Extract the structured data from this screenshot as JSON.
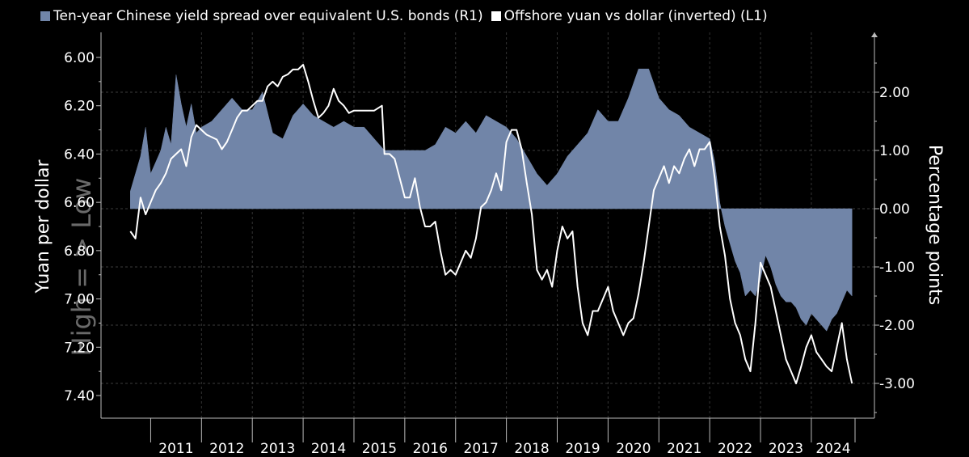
{
  "chart_data": {
    "type": "area",
    "legend_placement": "top-left",
    "grid": true,
    "colors": {
      "spread": "#7185a8",
      "yuan": "#ffffff",
      "background": "#000000",
      "grid": "#666666"
    },
    "left_axis": {
      "label": "Yuan per dollar",
      "inverted": true,
      "range": [
        5.97,
        7.47
      ],
      "ticks": [
        "6.00",
        "6.20",
        "6.40",
        "6.60",
        "6.80",
        "7.00",
        "7.20",
        "7.40"
      ]
    },
    "right_axis": {
      "label": "Percentage points",
      "range": [
        -3.6,
        3.0
      ],
      "ticks": [
        "2.00",
        "1.00",
        "0.00",
        "-1.00",
        "-2.00",
        "-3.00"
      ]
    },
    "watermark": "High = > Low",
    "x_years": [
      "2011",
      "2012",
      "2013",
      "2014",
      "2015",
      "2016",
      "2017",
      "2018",
      "2019",
      "2020",
      "2021",
      "2022",
      "2023",
      "2024"
    ],
    "series": [
      {
        "name": "Ten-year Chinese yield spread over equivalent U.S. bonds (R1)",
        "axis": "right",
        "x": [
          2010.6,
          2010.7,
          2010.8,
          2010.9,
          2011.0,
          2011.1,
          2011.2,
          2011.3,
          2011.4,
          2011.5,
          2011.6,
          2011.7,
          2011.8,
          2011.9,
          2012.0,
          2012.2,
          2012.4,
          2012.6,
          2012.8,
          2013.0,
          2013.2,
          2013.4,
          2013.6,
          2013.8,
          2014.0,
          2014.2,
          2014.4,
          2014.6,
          2014.8,
          2015.0,
          2015.2,
          2015.4,
          2015.6,
          2015.8,
          2016.0,
          2016.2,
          2016.4,
          2016.6,
          2016.8,
          2017.0,
          2017.2,
          2017.4,
          2017.6,
          2017.8,
          2018.0,
          2018.2,
          2018.4,
          2018.6,
          2018.8,
          2019.0,
          2019.2,
          2019.4,
          2019.6,
          2019.8,
          2020.0,
          2020.2,
          2020.4,
          2020.6,
          2020.8,
          2021.0,
          2021.2,
          2021.4,
          2021.6,
          2021.8,
          2022.0,
          2022.1,
          2022.2,
          2022.3,
          2022.4,
          2022.5,
          2022.6,
          2022.7,
          2022.8,
          2022.9,
          2023.0,
          2023.1,
          2023.2,
          2023.3,
          2023.4,
          2023.5,
          2023.6,
          2023.7,
          2023.8,
          2023.9,
          2024.0,
          2024.1,
          2024.2,
          2024.3,
          2024.4,
          2024.5,
          2024.6,
          2024.7,
          2024.8
        ],
        "values": [
          0.3,
          0.6,
          0.9,
          1.4,
          0.6,
          0.8,
          1.0,
          1.4,
          1.1,
          2.3,
          1.8,
          1.4,
          1.8,
          1.3,
          1.4,
          1.5,
          1.7,
          1.9,
          1.7,
          1.7,
          2.0,
          1.3,
          1.2,
          1.6,
          1.8,
          1.6,
          1.5,
          1.4,
          1.5,
          1.4,
          1.4,
          1.2,
          1.0,
          1.0,
          1.0,
          1.0,
          1.0,
          1.1,
          1.4,
          1.3,
          1.5,
          1.3,
          1.6,
          1.5,
          1.4,
          1.2,
          0.9,
          0.6,
          0.4,
          0.6,
          0.9,
          1.1,
          1.3,
          1.7,
          1.5,
          1.5,
          1.9,
          2.4,
          2.4,
          1.9,
          1.7,
          1.6,
          1.4,
          1.3,
          1.2,
          0.8,
          0.1,
          -0.3,
          -0.6,
          -0.9,
          -1.1,
          -1.5,
          -1.4,
          -1.5,
          -1.2,
          -0.8,
          -1.0,
          -1.3,
          -1.5,
          -1.6,
          -1.6,
          -1.7,
          -1.9,
          -2.0,
          -1.8,
          -1.9,
          -2.0,
          -2.1,
          -1.9,
          -1.8,
          -1.6,
          -1.4,
          -1.5
        ]
      },
      {
        "name": "Offshore yuan vs dollar (inverted) (L1)",
        "axis": "left",
        "x": [
          2010.6,
          2010.7,
          2010.8,
          2010.9,
          2011.0,
          2011.1,
          2011.2,
          2011.3,
          2011.4,
          2011.5,
          2011.6,
          2011.7,
          2011.8,
          2011.9,
          2012.0,
          2012.1,
          2012.2,
          2012.3,
          2012.4,
          2012.5,
          2012.6,
          2012.7,
          2012.8,
          2012.9,
          2013.0,
          2013.1,
          2013.2,
          2013.3,
          2013.4,
          2013.5,
          2013.6,
          2013.7,
          2013.8,
          2013.9,
          2014.0,
          2014.1,
          2014.2,
          2014.3,
          2014.4,
          2014.5,
          2014.6,
          2014.7,
          2014.8,
          2014.9,
          2015.0,
          2015.2,
          2015.4,
          2015.55,
          2015.6,
          2015.7,
          2015.8,
          2015.9,
          2016.0,
          2016.1,
          2016.2,
          2016.3,
          2016.4,
          2016.5,
          2016.6,
          2016.7,
          2016.8,
          2016.9,
          2017.0,
          2017.1,
          2017.2,
          2017.3,
          2017.4,
          2017.5,
          2017.6,
          2017.7,
          2017.8,
          2017.9,
          2018.0,
          2018.1,
          2018.2,
          2018.3,
          2018.4,
          2018.5,
          2018.6,
          2018.7,
          2018.8,
          2018.9,
          2019.0,
          2019.1,
          2019.2,
          2019.3,
          2019.4,
          2019.5,
          2019.6,
          2019.7,
          2019.8,
          2019.9,
          2020.0,
          2020.1,
          2020.2,
          2020.3,
          2020.4,
          2020.5,
          2020.6,
          2020.7,
          2020.8,
          2020.9,
          2021.0,
          2021.1,
          2021.2,
          2021.3,
          2021.4,
          2021.5,
          2021.6,
          2021.7,
          2021.8,
          2021.9,
          2022.0,
          2022.1,
          2022.2,
          2022.3,
          2022.4,
          2022.5,
          2022.6,
          2022.7,
          2022.8,
          2022.9,
          2023.0,
          2023.1,
          2023.2,
          2023.3,
          2023.4,
          2023.5,
          2023.6,
          2023.7,
          2023.8,
          2023.9,
          2024.0,
          2024.1,
          2024.2,
          2024.3,
          2024.4,
          2024.5,
          2024.6,
          2024.7,
          2024.8
        ],
        "values": [
          6.72,
          6.75,
          6.58,
          6.65,
          6.6,
          6.55,
          6.52,
          6.48,
          6.42,
          6.4,
          6.38,
          6.45,
          6.33,
          6.28,
          6.3,
          6.32,
          6.33,
          6.34,
          6.38,
          6.35,
          6.3,
          6.25,
          6.22,
          6.22,
          6.2,
          6.18,
          6.18,
          6.12,
          6.1,
          6.12,
          6.08,
          6.07,
          6.05,
          6.05,
          6.03,
          6.1,
          6.18,
          6.25,
          6.23,
          6.2,
          6.13,
          6.18,
          6.2,
          6.23,
          6.22,
          6.22,
          6.22,
          6.2,
          6.4,
          6.4,
          6.42,
          6.5,
          6.58,
          6.58,
          6.5,
          6.62,
          6.7,
          6.7,
          6.68,
          6.8,
          6.9,
          6.88,
          6.9,
          6.85,
          6.8,
          6.83,
          6.75,
          6.62,
          6.6,
          6.55,
          6.48,
          6.55,
          6.35,
          6.3,
          6.3,
          6.38,
          6.52,
          6.65,
          6.88,
          6.92,
          6.88,
          6.95,
          6.8,
          6.7,
          6.75,
          6.72,
          6.95,
          7.1,
          7.15,
          7.05,
          7.05,
          7.0,
          6.95,
          7.05,
          7.1,
          7.15,
          7.1,
          7.08,
          6.98,
          6.85,
          6.7,
          6.55,
          6.5,
          6.45,
          6.52,
          6.45,
          6.48,
          6.42,
          6.38,
          6.45,
          6.38,
          6.38,
          6.35,
          6.5,
          6.7,
          6.82,
          7.0,
          7.1,
          7.15,
          7.25,
          7.3,
          7.1,
          6.85,
          6.9,
          6.95,
          7.05,
          7.15,
          7.25,
          7.3,
          7.35,
          7.28,
          7.2,
          7.15,
          7.22,
          7.25,
          7.28,
          7.3,
          7.2,
          7.1,
          7.25,
          7.35
        ]
      }
    ]
  }
}
